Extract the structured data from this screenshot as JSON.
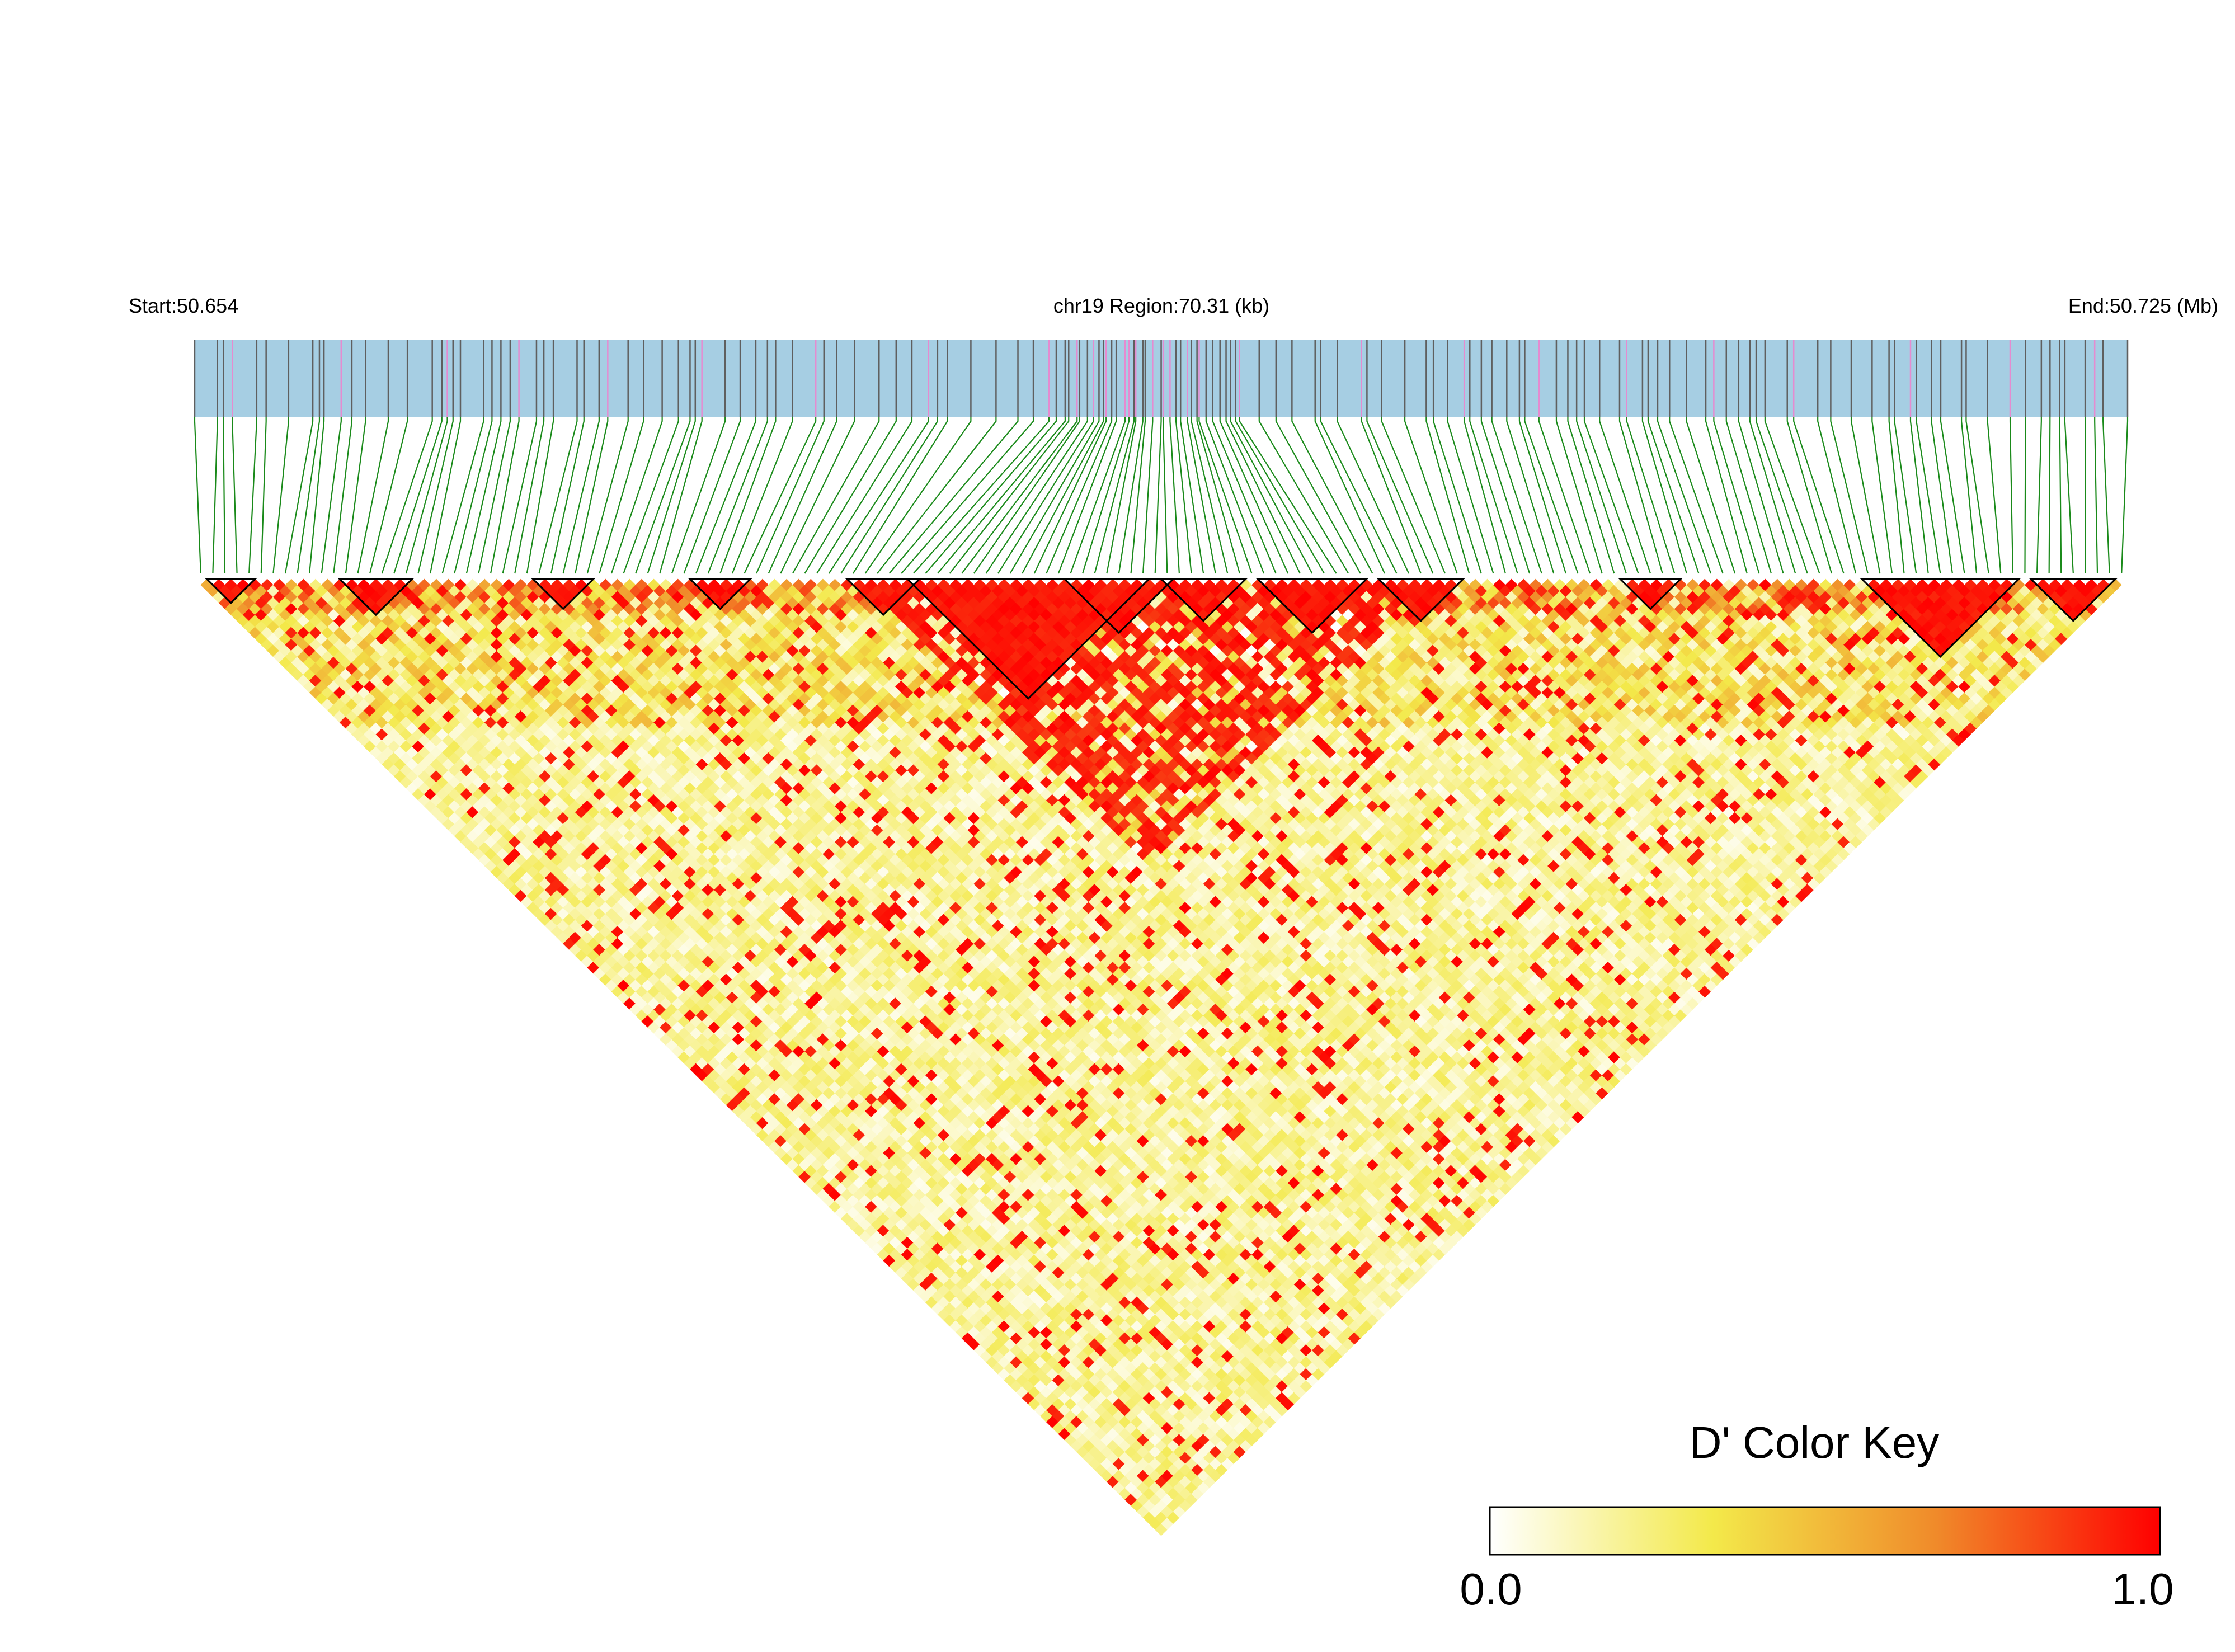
{
  "chart_data": {
    "type": "heatmap",
    "title": "",
    "header": {
      "start_label": "Start:50.654",
      "region_label": "chr19 Region:70.31 (kb)",
      "end_label": "End:50.725 (Mb)"
    },
    "chromosome": "chr19",
    "region_start_mb": 50.654,
    "region_end_mb": 50.725,
    "region_size_kb": 70.31,
    "snp_count": 160,
    "color_key": {
      "title": "D' Color Key",
      "min_label": "0.0",
      "max_label": "1.0",
      "min": 0.0,
      "max": 1.0,
      "colors": [
        "#ffffff",
        "#f3e94a",
        "#f08a2a",
        "#ff0000"
      ]
    },
    "track_colors": {
      "bar": "#a6cee3",
      "snp_tick": "#5f5f5f",
      "snp_tick_highlight": "#e58bd0",
      "connector": "#1a8a1a",
      "block_outline": "#000000"
    },
    "ld_blocks_snp_ranges": [
      [
        1,
        4
      ],
      [
        12,
        17
      ],
      [
        28,
        32
      ],
      [
        41,
        45
      ],
      [
        54,
        59
      ],
      [
        59,
        78
      ],
      [
        72,
        80
      ],
      [
        80,
        86
      ],
      [
        88,
        96
      ],
      [
        98,
        104
      ],
      [
        118,
        122
      ],
      [
        138,
        150
      ],
      [
        152,
        158
      ]
    ],
    "pattern_note": "D' values rendered per SNP pair; pairs within LD blocks are near 1.0"
  }
}
